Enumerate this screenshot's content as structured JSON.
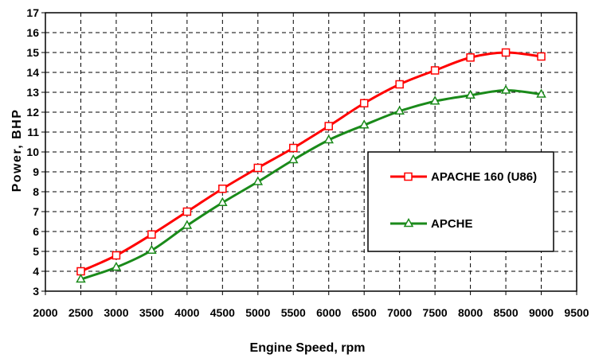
{
  "chart_data": {
    "type": "line",
    "title": "",
    "xlabel": "Engine Speed, rpm",
    "ylabel": "Power, BHP",
    "xlim": [
      2000,
      9500
    ],
    "ylim": [
      3,
      17
    ],
    "x_ticks": [
      2000,
      2500,
      3000,
      3500,
      4000,
      4500,
      5000,
      5500,
      6000,
      6500,
      7000,
      7500,
      8000,
      8500,
      9000,
      9500
    ],
    "y_ticks": [
      3,
      4,
      5,
      6,
      7,
      8,
      9,
      10,
      11,
      12,
      13,
      14,
      15,
      16,
      17
    ],
    "grid": true,
    "legend_position": "right",
    "x": [
      2500,
      3000,
      3500,
      4000,
      4500,
      5000,
      5500,
      6000,
      6500,
      7000,
      7500,
      8000,
      8500,
      9000
    ],
    "series": [
      {
        "name": "APACHE 160 (U86)",
        "color": "#ff0000",
        "marker": "square",
        "values": [
          4.0,
          4.8,
          5.85,
          7.0,
          8.15,
          9.2,
          10.2,
          11.3,
          12.45,
          13.4,
          14.1,
          14.75,
          15.0,
          14.8
        ]
      },
      {
        "name": "APCHE",
        "color": "#1a8a1a",
        "marker": "triangle",
        "values": [
          3.6,
          4.2,
          5.05,
          6.3,
          7.45,
          8.5,
          9.6,
          10.6,
          11.35,
          12.05,
          12.55,
          12.85,
          13.1,
          12.9
        ]
      }
    ]
  }
}
